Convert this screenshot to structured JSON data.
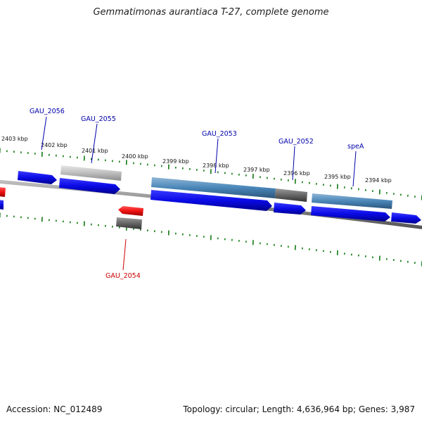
{
  "title": "Gemmatimonas aurantiaca T-27, complete genome",
  "accession": "Accession: NC_012489",
  "summary": "Topology: circular; Length: 4,636,964 bp; Genes: 3,987",
  "colors": {
    "forward_cds": "#0a0ae6",
    "reverse_cds": "#ee1111",
    "forward_gene": "#4a86b8",
    "pseudo_gene": "#666666",
    "light_gene": "#bdbdbd",
    "ticks": "#117a11",
    "backbone": "#888888",
    "label_forward": "#0000aa",
    "label_reverse": "#cc0000"
  },
  "scale_labels": [
    "2403 kbp",
    "2402 kbp",
    "2401 kbp",
    "2400 kbp",
    "2399 kbp",
    "2398 kbp",
    "2397 kbp",
    "2396 kbp",
    "2395 kbp",
    "2394 kbp"
  ],
  "gene_labels": [
    {
      "text": "GAU_2056",
      "strand": "forward"
    },
    {
      "text": "GAU_2055",
      "strand": "forward"
    },
    {
      "text": "GAU_2053",
      "strand": "forward"
    },
    {
      "text": "GAU_2052",
      "strand": "forward"
    },
    {
      "text": "speA",
      "strand": "forward"
    },
    {
      "text": "GAU_2054",
      "strand": "reverse"
    }
  ]
}
